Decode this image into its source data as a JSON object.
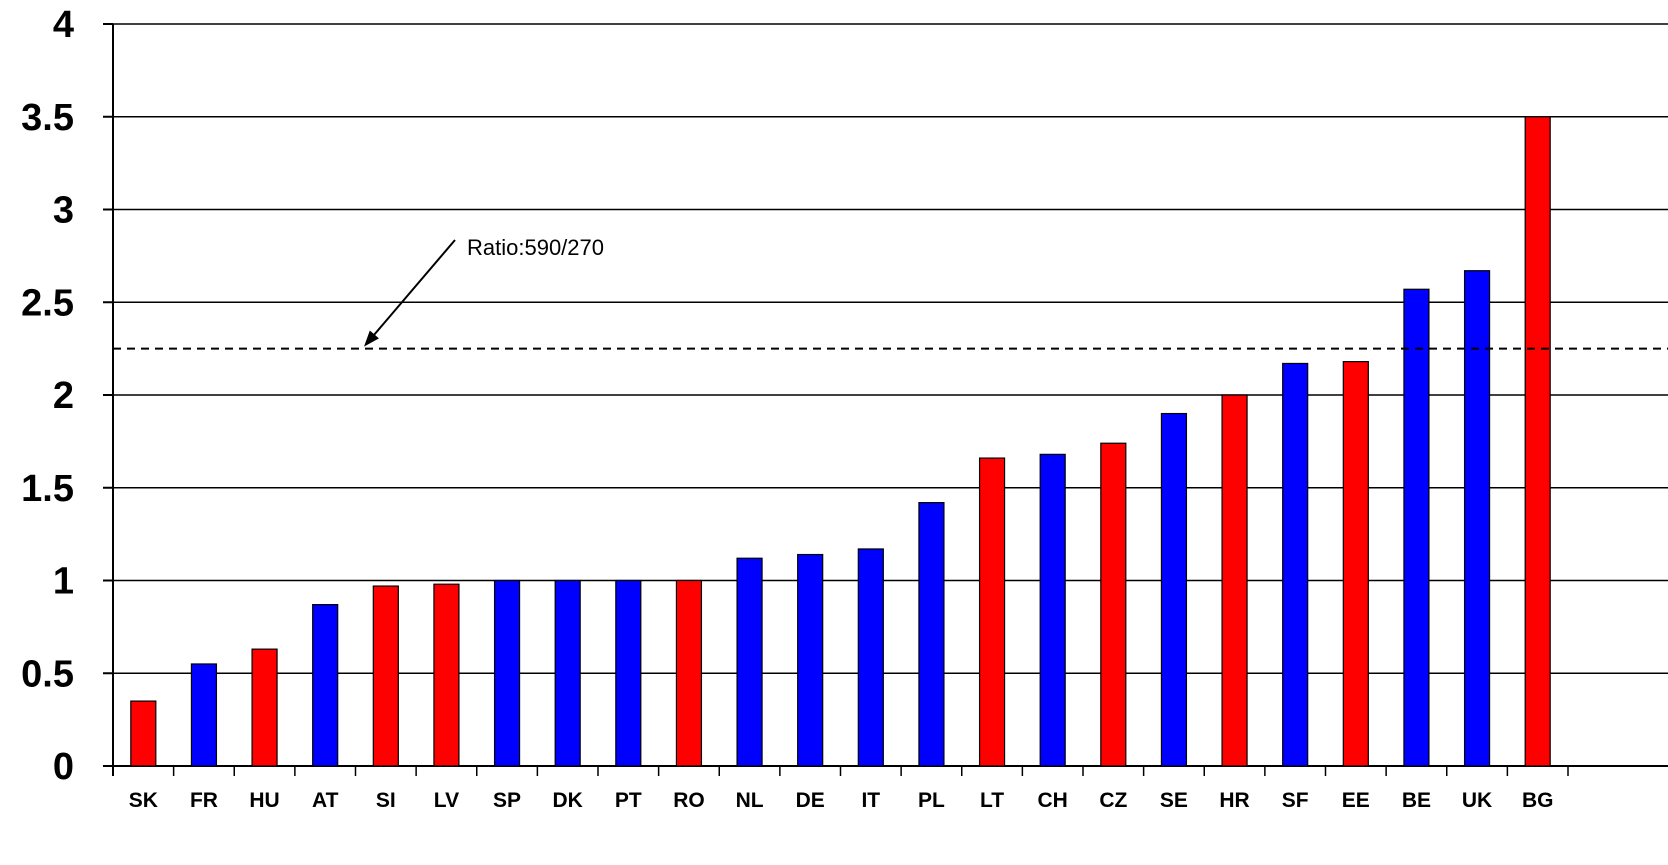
{
  "chart_data": {
    "type": "bar",
    "title": "",
    "xlabel": "",
    "ylabel": "",
    "ylim": [
      0,
      4
    ],
    "yticks": [
      "0",
      "0.5",
      "1",
      "1.5",
      "2",
      "2.5",
      "3",
      "3.5",
      "4"
    ],
    "grid": "horizontal",
    "categories": [
      "SK",
      "FR",
      "HU",
      "AT",
      "SI",
      "LV",
      "SP",
      "DK",
      "PT",
      "RO",
      "NL",
      "DE",
      "IT",
      "PL",
      "LT",
      "CH",
      "CZ",
      "SE",
      "HR",
      "SF",
      "EE",
      "BE",
      "UK",
      "BG"
    ],
    "values": [
      0.35,
      0.55,
      0.63,
      0.87,
      0.97,
      0.98,
      1.0,
      1.0,
      1.0,
      1.0,
      1.12,
      1.14,
      1.17,
      1.42,
      1.66,
      1.68,
      1.74,
      1.9,
      2.0,
      2.17,
      2.18,
      2.57,
      2.67,
      3.5
    ],
    "bar_colors": [
      "#ff0000",
      "#0000ff",
      "#ff0000",
      "#0000ff",
      "#ff0000",
      "#ff0000",
      "#0000ff",
      "#0000ff",
      "#0000ff",
      "#ff0000",
      "#0000ff",
      "#0000ff",
      "#0000ff",
      "#0000ff",
      "#ff0000",
      "#0000ff",
      "#ff0000",
      "#0000ff",
      "#ff0000",
      "#0000ff",
      "#ff0000",
      "#0000ff",
      "#0000ff",
      "#ff0000"
    ],
    "reference_line": {
      "value": 2.25,
      "style": "dashed"
    },
    "annotation": {
      "text": "Ratio:590/270"
    }
  }
}
